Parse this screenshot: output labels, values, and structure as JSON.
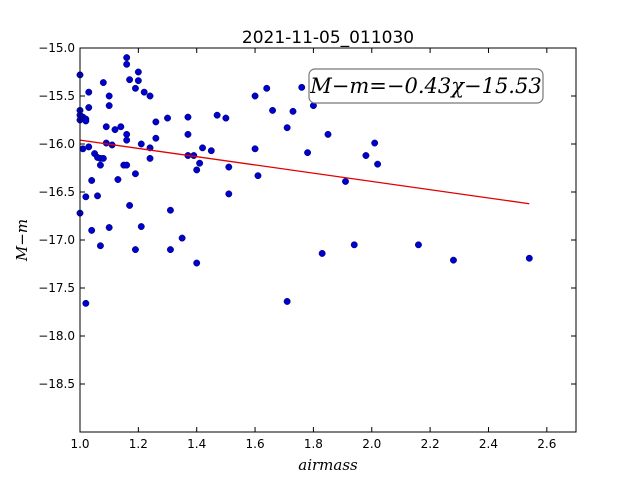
{
  "chart_data": {
    "type": "scatter",
    "title": "2021-11-05_011030",
    "xlabel": "airmass",
    "ylabel": "M−m",
    "xlim": [
      1.0,
      2.7
    ],
    "ylim": [
      -19.0,
      -15.0
    ],
    "y_inverted": true,
    "grid": false,
    "xticks": [
      "1.0",
      "1.2",
      "1.4",
      "1.6",
      "1.8",
      "2.0",
      "2.2",
      "2.4",
      "2.6"
    ],
    "yticks": [
      "−15.0",
      "−15.5",
      "−16.0",
      "−16.5",
      "−17.0",
      "−17.5",
      "−18.0",
      "−18.5"
    ],
    "annotation": "M−m=−0.43χ−15.53",
    "point_color": "#0000cc",
    "fit_color": "#e00000",
    "fit_line": {
      "slope": -0.43,
      "intercept": -15.53,
      "x_range": [
        1.0,
        2.54
      ]
    },
    "series": [
      {
        "points": [
          [
            1.0,
            -15.28
          ],
          [
            1.0,
            -15.65
          ],
          [
            1.0,
            -15.7
          ],
          [
            1.0,
            -15.75
          ],
          [
            1.0,
            -16.72
          ],
          [
            1.01,
            -16.05
          ],
          [
            1.01,
            -15.72
          ],
          [
            1.02,
            -15.74
          ],
          [
            1.02,
            -15.76
          ],
          [
            1.02,
            -16.55
          ],
          [
            1.02,
            -17.66
          ],
          [
            1.03,
            -15.62
          ],
          [
            1.03,
            -15.46
          ],
          [
            1.03,
            -16.03
          ],
          [
            1.04,
            -16.9
          ],
          [
            1.04,
            -16.38
          ],
          [
            1.05,
            -16.1
          ],
          [
            1.06,
            -16.54
          ],
          [
            1.06,
            -16.14
          ],
          [
            1.07,
            -16.22
          ],
          [
            1.07,
            -16.15
          ],
          [
            1.07,
            -17.06
          ],
          [
            1.08,
            -16.15
          ],
          [
            1.08,
            -15.36
          ],
          [
            1.09,
            -15.99
          ],
          [
            1.09,
            -15.82
          ],
          [
            1.1,
            -15.5
          ],
          [
            1.1,
            -15.6
          ],
          [
            1.1,
            -16.87
          ],
          [
            1.11,
            -16.01
          ],
          [
            1.12,
            -15.85
          ],
          [
            1.13,
            -16.37
          ],
          [
            1.14,
            -15.82
          ],
          [
            1.15,
            -16.22
          ],
          [
            1.16,
            -15.1
          ],
          [
            1.16,
            -15.17
          ],
          [
            1.16,
            -15.9
          ],
          [
            1.16,
            -15.96
          ],
          [
            1.16,
            -16.22
          ],
          [
            1.17,
            -15.33
          ],
          [
            1.17,
            -16.64
          ],
          [
            1.19,
            -15.42
          ],
          [
            1.19,
            -17.1
          ],
          [
            1.19,
            -16.31
          ],
          [
            1.2,
            -15.34
          ],
          [
            1.2,
            -15.25
          ],
          [
            1.21,
            -16.0
          ],
          [
            1.21,
            -16.86
          ],
          [
            1.22,
            -15.46
          ],
          [
            1.24,
            -15.5
          ],
          [
            1.24,
            -16.04
          ],
          [
            1.24,
            -16.15
          ],
          [
            1.26,
            -15.77
          ],
          [
            1.26,
            -15.94
          ],
          [
            1.3,
            -15.73
          ],
          [
            1.31,
            -16.69
          ],
          [
            1.31,
            -17.1
          ],
          [
            1.35,
            -16.98
          ],
          [
            1.37,
            -15.72
          ],
          [
            1.37,
            -15.9
          ],
          [
            1.37,
            -16.12
          ],
          [
            1.39,
            -16.12
          ],
          [
            1.4,
            -17.24
          ],
          [
            1.4,
            -16.27
          ],
          [
            1.41,
            -16.2
          ],
          [
            1.42,
            -16.04
          ],
          [
            1.45,
            -16.07
          ],
          [
            1.47,
            -15.7
          ],
          [
            1.5,
            -15.73
          ],
          [
            1.51,
            -16.24
          ],
          [
            1.51,
            -16.52
          ],
          [
            1.6,
            -15.5
          ],
          [
            1.6,
            -16.05
          ],
          [
            1.61,
            -16.33
          ],
          [
            1.64,
            -15.42
          ],
          [
            1.66,
            -15.65
          ],
          [
            1.71,
            -17.64
          ],
          [
            1.71,
            -15.83
          ],
          [
            1.73,
            -15.66
          ],
          [
            1.76,
            -15.41
          ],
          [
            1.78,
            -16.09
          ],
          [
            1.8,
            -15.6
          ],
          [
            1.83,
            -17.14
          ],
          [
            1.85,
            -15.9
          ],
          [
            1.91,
            -16.39
          ],
          [
            1.94,
            -17.05
          ],
          [
            1.98,
            -16.12
          ],
          [
            2.01,
            -15.99
          ],
          [
            2.02,
            -16.21
          ],
          [
            2.16,
            -17.05
          ],
          [
            2.28,
            -17.21
          ],
          [
            2.54,
            -17.19
          ]
        ]
      }
    ]
  }
}
